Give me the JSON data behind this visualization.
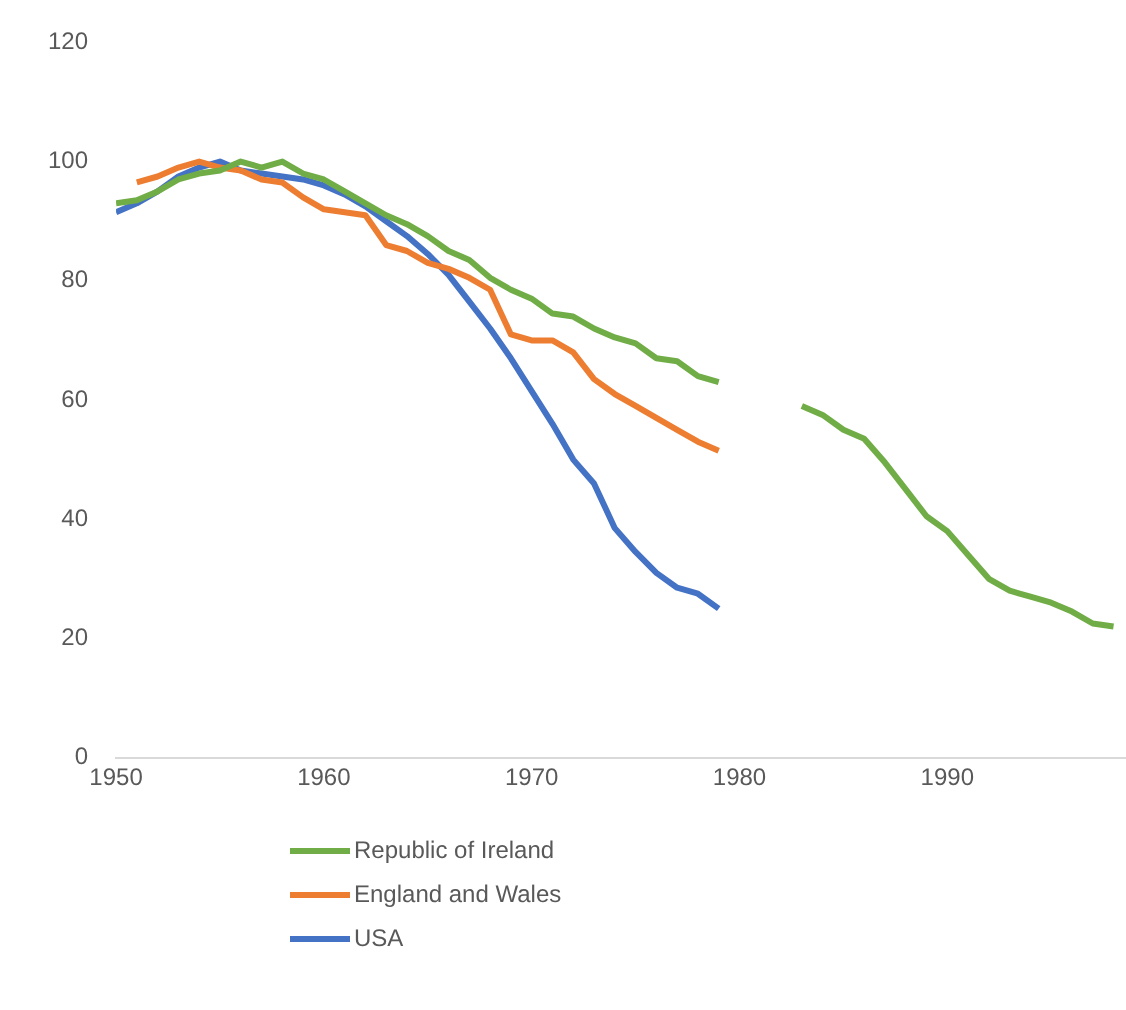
{
  "chart_data": {
    "type": "line",
    "x": [
      1950,
      1951,
      1952,
      1953,
      1954,
      1955,
      1956,
      1957,
      1958,
      1959,
      1960,
      1961,
      1962,
      1963,
      1964,
      1965,
      1966,
      1967,
      1968,
      1969,
      1970,
      1971,
      1972,
      1973,
      1974,
      1975,
      1976,
      1977,
      1978,
      1979,
      1980,
      1981,
      1982,
      1983,
      1984,
      1985,
      1986,
      1987,
      1988,
      1989,
      1990,
      1991,
      1992,
      1993,
      1994,
      1995,
      1996,
      1997,
      1998
    ],
    "series": [
      {
        "name": "Republic of Ireland",
        "color": "#70ad47",
        "values": [
          93,
          93.5,
          95,
          97,
          98,
          98.5,
          100,
          99,
          100,
          98,
          97,
          95,
          93,
          91,
          89.5,
          87.5,
          85,
          83.5,
          80.5,
          78.5,
          77,
          74.5,
          74,
          72,
          70.5,
          69.5,
          67,
          66.5,
          64,
          63,
          null,
          null,
          null,
          59,
          57.5,
          55,
          53.5,
          49.5,
          45,
          40.5,
          38,
          34,
          30,
          28,
          27,
          26,
          24.5,
          22.5,
          22
        ]
      },
      {
        "name": "England and Wales",
        "color": "#ed7d31",
        "values": [
          null,
          96.5,
          97.5,
          99,
          100,
          99,
          98.5,
          97,
          96.5,
          94,
          92,
          91.5,
          91,
          86,
          85,
          83,
          82,
          80.5,
          78.5,
          71,
          70,
          70,
          68,
          63.5,
          61,
          59,
          57,
          55,
          53,
          51.5,
          null,
          null,
          null,
          null,
          null,
          null,
          null,
          null,
          null,
          null,
          null,
          null,
          null,
          null,
          null,
          null,
          null,
          null,
          null
        ]
      },
      {
        "name": "USA",
        "color": "#4472c4",
        "values": [
          91.5,
          93,
          95,
          97.5,
          99,
          100,
          98.5,
          98,
          97.5,
          97,
          96,
          94.5,
          92.5,
          90,
          87.5,
          84.5,
          81,
          76.5,
          72,
          67,
          61.5,
          56,
          50,
          46,
          38.5,
          34.5,
          31,
          28.5,
          27.5,
          25,
          null,
          null,
          null,
          null,
          null,
          null,
          null,
          null,
          null,
          null,
          null,
          null,
          null,
          null,
          null,
          null,
          null,
          null,
          null
        ]
      }
    ],
    "xlim": [
      1950,
      1998.6
    ],
    "xticks": [
      1950,
      1960,
      1970,
      1980,
      1990
    ],
    "ylim": [
      0,
      120
    ],
    "yticks": [
      0,
      20,
      40,
      60,
      80,
      100,
      120
    ],
    "grid": false,
    "legend": "bottom",
    "marker": "none",
    "line_style": "solid"
  }
}
